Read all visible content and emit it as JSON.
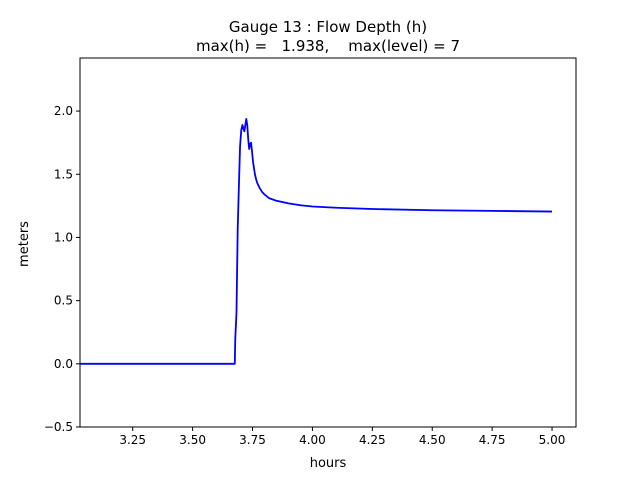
{
  "chart_data": {
    "type": "line",
    "title_line1": "Gauge 13 : Flow Depth (h)",
    "title_line2": "max(h) =   1.938,    max(level) = 7",
    "xlabel": "hours",
    "ylabel": "meters",
    "xlim": [
      3.03,
      5.1
    ],
    "ylim": [
      -0.5,
      2.42
    ],
    "xticks": [
      3.25,
      3.5,
      3.75,
      4.0,
      4.25,
      4.5,
      4.75,
      5.0
    ],
    "xtick_labels": [
      "3.25",
      "3.50",
      "3.75",
      "4.00",
      "4.25",
      "4.50",
      "4.75",
      "5.00"
    ],
    "yticks": [
      -0.5,
      0.0,
      0.5,
      1.0,
      1.5,
      2.0
    ],
    "ytick_labels": [
      "−0.5",
      "0.0",
      "0.5",
      "1.0",
      "1.5",
      "2.0"
    ],
    "grid": false,
    "series": [
      {
        "color": "#0000ff",
        "x": [
          3.03,
          3.676,
          3.678,
          3.683,
          3.688,
          3.693,
          3.698,
          3.703,
          3.708,
          3.712,
          3.716,
          3.72,
          3.724,
          3.728,
          3.732,
          3.736,
          3.74,
          3.744,
          3.748,
          3.752,
          3.756,
          3.76,
          3.765,
          3.77,
          3.78,
          3.79,
          3.8,
          3.82,
          3.85,
          3.9,
          3.95,
          4.0,
          4.1,
          4.25,
          4.5,
          4.75,
          5.0
        ],
        "y": [
          0.0,
          0.0,
          0.2,
          0.4,
          1.05,
          1.4,
          1.72,
          1.85,
          1.89,
          1.86,
          1.84,
          1.89,
          1.938,
          1.89,
          1.78,
          1.7,
          1.74,
          1.75,
          1.68,
          1.6,
          1.55,
          1.5,
          1.46,
          1.43,
          1.39,
          1.36,
          1.34,
          1.31,
          1.29,
          1.27,
          1.255,
          1.245,
          1.235,
          1.225,
          1.215,
          1.21,
          1.205
        ]
      }
    ]
  }
}
